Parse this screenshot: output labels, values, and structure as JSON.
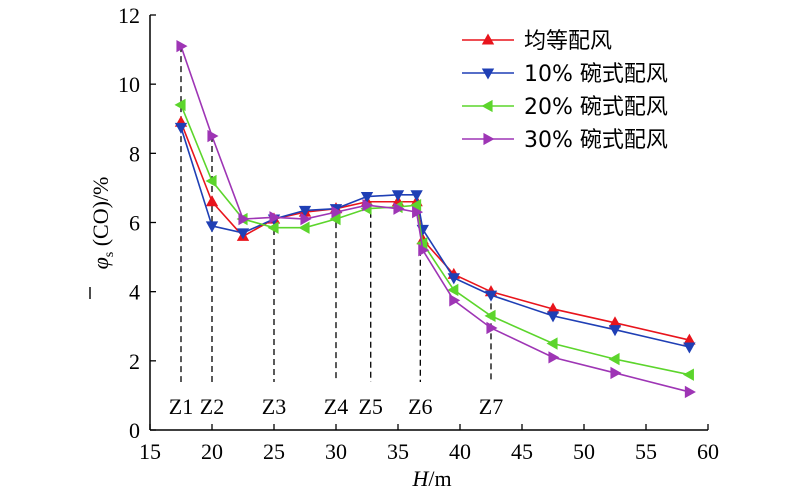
{
  "chart_data": {
    "type": "line",
    "xlabel_italic": "H",
    "xlabel_rest": "/m",
    "ylabel_symbol": "φ",
    "ylabel_subscript": "s",
    "ylabel_rest": " (CO)/%",
    "xlim": [
      15,
      60
    ],
    "ylim": [
      0,
      12
    ],
    "xticks": [
      15,
      20,
      25,
      30,
      35,
      40,
      45,
      50,
      55,
      60
    ],
    "yticks": [
      0,
      2,
      4,
      6,
      8,
      10,
      12
    ],
    "grid": false,
    "legend_position": "top-right",
    "series": [
      {
        "name": "均等配风",
        "color": "#e8141c",
        "marker": "triangle-up",
        "x": [
          17.5,
          20,
          22.5,
          25,
          27.5,
          30,
          32.5,
          35,
          36.5,
          37,
          39.5,
          42.5,
          47.5,
          52.5,
          58.5
        ],
        "y": [
          8.9,
          6.6,
          5.6,
          6.1,
          6.3,
          6.4,
          6.6,
          6.6,
          6.6,
          5.5,
          4.5,
          4.0,
          3.5,
          3.1,
          2.6
        ]
      },
      {
        "name": "10% 碗式配风",
        "color": "#1f3fb5",
        "marker": "triangle-down",
        "x": [
          17.5,
          20,
          22.5,
          25,
          27.5,
          30,
          32.5,
          35,
          36.5,
          37,
          39.5,
          42.5,
          47.5,
          52.5,
          58.5
        ],
        "y": [
          8.75,
          5.9,
          5.7,
          6.1,
          6.35,
          6.4,
          6.75,
          6.8,
          6.8,
          5.8,
          4.4,
          3.9,
          3.3,
          2.9,
          2.4
        ]
      },
      {
        "name": "20% 碗式配风",
        "color": "#5cd52c",
        "marker": "triangle-left",
        "x": [
          17.5,
          20,
          22.5,
          25,
          27.5,
          30,
          32.5,
          35,
          36.5,
          37,
          39.5,
          42.5,
          47.5,
          52.5,
          58.5
        ],
        "y": [
          9.4,
          7.2,
          6.1,
          5.85,
          5.85,
          6.1,
          6.4,
          6.45,
          6.5,
          5.4,
          4.05,
          3.3,
          2.5,
          2.05,
          1.6
        ]
      },
      {
        "name": "30% 碗式配风",
        "color": "#9e35b5",
        "marker": "triangle-right",
        "x": [
          17.5,
          20,
          22.5,
          25,
          27.5,
          30,
          32.5,
          35,
          36.5,
          37,
          39.5,
          42.5,
          47.5,
          52.5,
          58.5
        ],
        "y": [
          11.1,
          8.5,
          6.1,
          6.15,
          6.1,
          6.3,
          6.5,
          6.4,
          6.3,
          5.2,
          3.75,
          2.95,
          2.1,
          1.65,
          1.1
        ]
      }
    ],
    "zones": [
      {
        "label": "Z1",
        "x": 17.5,
        "y": 11.1
      },
      {
        "label": "Z2",
        "x": 20,
        "y": 8.5
      },
      {
        "label": "Z3",
        "x": 25,
        "y": 6.1
      },
      {
        "label": "Z4",
        "x": 30,
        "y": 6.3
      },
      {
        "label": "Z5",
        "x": 32.8,
        "y": 6.6
      },
      {
        "label": "Z6",
        "x": 36.8,
        "y": 5.5
      },
      {
        "label": "Z7",
        "x": 42.5,
        "y": 3.95
      }
    ]
  }
}
